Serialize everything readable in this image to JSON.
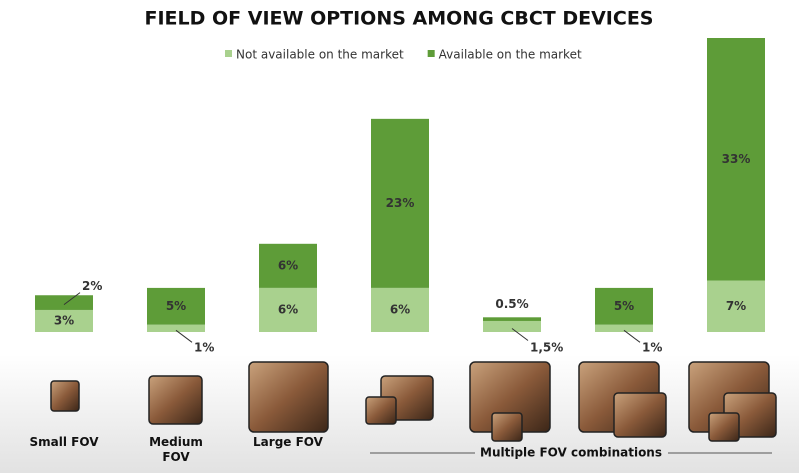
{
  "chart_data": {
    "type": "bar",
    "stacked": true,
    "title": "FIELD OF VIEW OPTIONS AMONG CBCT DEVICES",
    "categories": [
      "Small FOV",
      "Medium FOV",
      "Large FOV",
      null,
      null,
      null,
      null
    ],
    "annotations": [
      "Multiple FOV combinations"
    ],
    "series": [
      {
        "name": "Not available on the market",
        "color": "#a9d18e",
        "values": [
          3,
          1,
          6,
          6,
          1.5,
          1,
          7
        ],
        "value_labels": [
          "3%",
          "1%",
          "6%",
          "6%",
          "1,5%",
          "1%",
          "7%"
        ]
      },
      {
        "name": "Available on the market",
        "color": "#5e9c38",
        "values": [
          2,
          5,
          6,
          23,
          0.5,
          5,
          33
        ],
        "value_labels": [
          "2%",
          "5%",
          "6%",
          "23%",
          "0.5%",
          "5%",
          "33%"
        ]
      }
    ],
    "ylim": [
      0,
      40
    ],
    "legend": "top"
  }
}
